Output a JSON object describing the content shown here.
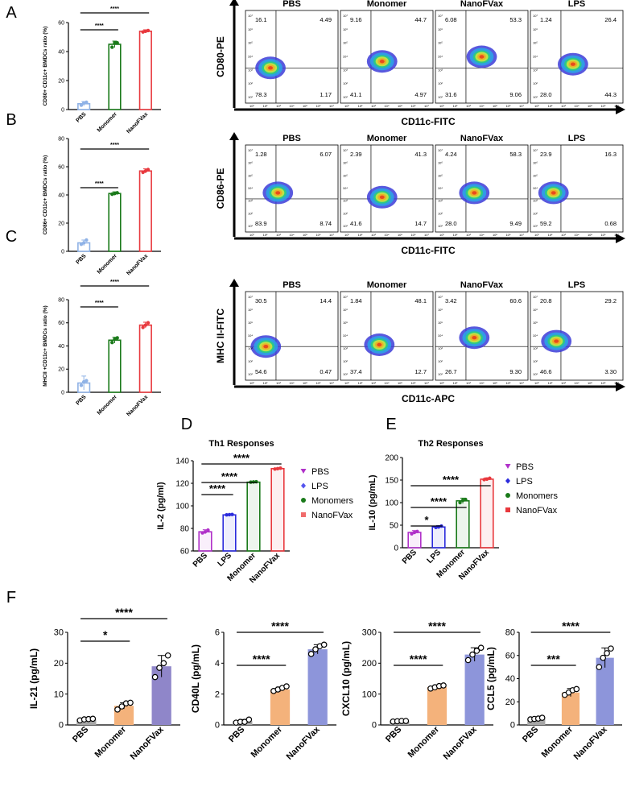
{
  "colors": {
    "pbs_light": "#8fb2e6",
    "monomer_green": "#1a7a1a",
    "nanofvax_red": "#e8383d",
    "purple": "#b031c9",
    "blue": "#2b2bdc",
    "gray_bar": "#a6a6a6",
    "orange_bar": "#f4b27b",
    "violet_bar": "#8f86c9",
    "periwinkle_bar": "#8d95da"
  },
  "panel_labels": [
    "A",
    "B",
    "C",
    "D",
    "E",
    "F"
  ],
  "flow_groups": [
    "PBS",
    "Monomer",
    "NanoFVax",
    "LPS"
  ],
  "flow_tick_labels": {
    "x": [
      "10⁰",
      "10²",
      "10³",
      "10⁴",
      "10⁵",
      "10⁶",
      "10⁷"
    ],
    "y": [
      "10⁷",
      "10⁶",
      "10⁵",
      "10⁴",
      "10³",
      "10²",
      "10¹"
    ]
  },
  "chart_data": [
    {
      "id": "A-bar",
      "type": "bar",
      "title": "",
      "categories": [
        "PBS",
        "Monomer",
        "NanoFVax"
      ],
      "values": [
        4,
        45,
        54
      ],
      "errors": [
        1.5,
        2.2,
        1.0
      ],
      "points": [
        [
          3,
          4.5,
          5
        ],
        [
          43,
          46,
          46
        ],
        [
          53.5,
          54,
          54.5
        ]
      ],
      "ylabel": "CD80+ CD11c+ BMDCs ratio (%)",
      "ylim": [
        0,
        60
      ],
      "yticks": [
        "0",
        "20",
        "40",
        "60"
      ],
      "significance": [
        "****",
        "****"
      ]
    },
    {
      "id": "A-flow",
      "type": "scatter",
      "xlabel": "CD11c-FITC",
      "ylabel": "CD80-PE",
      "groups": [
        "PBS",
        "Monomer",
        "NanoFVax",
        "LPS"
      ],
      "quadrants": [
        {
          "UL": "16.1",
          "UR": "4.49",
          "LL": "78.3",
          "LR": "1.17"
        },
        {
          "UL": "9.16",
          "UR": "44.7",
          "LL": "41.1",
          "LR": "4.97"
        },
        {
          "UL": "6.08",
          "UR": "53.3",
          "LL": "31.6",
          "LR": "9.06"
        },
        {
          "UL": "1.24",
          "UR": "26.4",
          "LL": "28.0",
          "LR": "44.3"
        }
      ]
    },
    {
      "id": "B-bar",
      "type": "bar",
      "categories": [
        "PBS",
        "Monomer",
        "NanoFVax"
      ],
      "values": [
        6,
        41,
        57
      ],
      "errors": [
        2.0,
        1.2,
        1.5
      ],
      "points": [
        [
          5,
          6,
          8
        ],
        [
          40.5,
          41,
          41.5
        ],
        [
          56,
          57,
          58
        ]
      ],
      "ylabel": "CD86+ CD11c+ BMDCs ratio (%)",
      "ylim": [
        0,
        80
      ],
      "yticks": [
        "0",
        "20",
        "40",
        "60",
        "80"
      ],
      "significance": [
        "****",
        "****"
      ]
    },
    {
      "id": "B-flow",
      "type": "scatter",
      "xlabel": "CD11c-FITC",
      "ylabel": "CD86-PE",
      "groups": [
        "PBS",
        "Monomer",
        "NanoFVax",
        "LPS"
      ],
      "quadrants": [
        {
          "UL": "1.28",
          "UR": "6.07",
          "LL": "83.9",
          "LR": "8.74"
        },
        {
          "UL": "2.39",
          "UR": "41.3",
          "LL": "41.6",
          "LR": "14.7"
        },
        {
          "UL": "4.24",
          "UR": "58.3",
          "LL": "28.0",
          "LR": "9.49"
        },
        {
          "UL": "23.9",
          "UR": "16.3",
          "LL": "59.2",
          "LR": "0.68"
        }
      ]
    },
    {
      "id": "C-bar",
      "type": "bar",
      "categories": [
        "PBS",
        "Monomer",
        "NanoFVax"
      ],
      "values": [
        8,
        45,
        58
      ],
      "errors": [
        6.0,
        2.5,
        2.5
      ],
      "points": [
        [
          6,
          9,
          10
        ],
        [
          43,
          46,
          47
        ],
        [
          56,
          58,
          60
        ]
      ],
      "ylabel": "MHCII +CD11c+ BMDCs ratio (%)",
      "ylim": [
        0,
        80
      ],
      "yticks": [
        "0",
        "20",
        "40",
        "60",
        "80"
      ],
      "significance": [
        "****",
        "****"
      ]
    },
    {
      "id": "C-flow",
      "type": "scatter",
      "xlabel": "CD11c-APC",
      "ylabel": "MHC II-FITC",
      "groups": [
        "PBS",
        "Monomer",
        "NanoFVax",
        "LPS"
      ],
      "quadrants": [
        {
          "UL": "30.5",
          "UR": "14.4",
          "LL": "54.6",
          "LR": "0.47"
        },
        {
          "UL": "1.84",
          "UR": "48.1",
          "LL": "37.4",
          "LR": "12.7"
        },
        {
          "UL": "3.42",
          "UR": "60.6",
          "LL": "26.7",
          "LR": "9.30"
        },
        {
          "UL": "20.8",
          "UR": "29.2",
          "LL": "46.6",
          "LR": "3.30"
        }
      ]
    },
    {
      "id": "D",
      "type": "bar",
      "title": "Th1 Responses",
      "categories": [
        "PBS",
        "LPS",
        "Monomer",
        "NanoFVax"
      ],
      "legend": [
        "PBS",
        "LPS",
        "Monomers",
        "NanoFVax"
      ],
      "values": [
        77,
        92,
        121,
        133
      ],
      "errors": [
        1.8,
        0.4,
        0.4,
        0.6
      ],
      "points": [
        [
          76,
          77,
          78.5
        ],
        [
          92,
          92.2,
          92.4
        ],
        [
          121,
          121.2,
          121.4
        ],
        [
          132.6,
          133,
          133.4
        ]
      ],
      "ylabel": "IL-2 (pg/ml)",
      "ylim": [
        60,
        140
      ],
      "yticks": [
        "60",
        "80",
        "100",
        "120",
        "140"
      ],
      "significance": [
        "****",
        "****",
        "****"
      ]
    },
    {
      "id": "E",
      "type": "bar",
      "title": "Th2 Responses",
      "categories": [
        "PBS",
        "LPS",
        "Monomer",
        "NanoFVax"
      ],
      "legend": [
        "PBS",
        "LPS",
        "Monomers",
        "NanoFVax"
      ],
      "values": [
        34,
        46,
        104,
        152
      ],
      "errors": [
        4,
        3,
        6,
        3
      ],
      "points": [
        [
          31,
          34,
          36
        ],
        [
          45,
          46,
          48
        ],
        [
          100,
          105,
          107
        ],
        [
          151,
          152,
          154
        ]
      ],
      "ylabel": "IL-10 (pg/mL)",
      "ylim": [
        0,
        200
      ],
      "yticks": [
        "0",
        "50",
        "100",
        "150",
        "200"
      ],
      "significance": [
        "*",
        "****",
        "****"
      ]
    },
    {
      "id": "F1",
      "type": "bar",
      "categories": [
        "PBS",
        "Monomer",
        "NanoFVax"
      ],
      "values": [
        1.8,
        6.2,
        19
      ],
      "errors": [
        0.3,
        1.0,
        3.5
      ],
      "points": [
        [
          1.5,
          1.8,
          1.9,
          2.0
        ],
        [
          5.0,
          6.0,
          7.0,
          7.2
        ],
        [
          15.5,
          18.5,
          20,
          22.5
        ]
      ],
      "ylabel": "IL-21 (pg/mL)",
      "ylim": [
        0,
        30
      ],
      "yticks": [
        "0",
        "10",
        "20",
        "30"
      ],
      "significance": [
        "*",
        "****"
      ]
    },
    {
      "id": "F2",
      "type": "bar",
      "categories": [
        "PBS",
        "Monomer",
        "NanoFVax"
      ],
      "values": [
        0.25,
        2.3,
        4.9
      ],
      "errors": [
        0.1,
        0.15,
        0.3
      ],
      "points": [
        [
          0.15,
          0.2,
          0.2,
          0.35
        ],
        [
          2.2,
          2.3,
          2.4,
          2.5
        ],
        [
          4.6,
          4.9,
          5.1,
          5.2
        ]
      ],
      "ylabel": "CD40L (pg/mL)",
      "ylim": [
        0,
        6
      ],
      "yticks": [
        "0",
        "2",
        "4",
        "6"
      ],
      "significance": [
        "****",
        "****"
      ]
    },
    {
      "id": "F3",
      "type": "bar",
      "categories": [
        "PBS",
        "Monomer",
        "NanoFVax"
      ],
      "values": [
        12,
        123,
        228
      ],
      "errors": [
        2,
        6,
        22
      ],
      "points": [
        [
          11,
          12,
          13,
          13
        ],
        [
          118,
          122,
          126,
          128
        ],
        [
          210,
          228,
          240,
          250
        ]
      ],
      "ylabel": "CXCL10 (pg/mL)",
      "ylim": [
        0,
        300
      ],
      "yticks": [
        "0",
        "100",
        "200",
        "300"
      ],
      "significance": [
        "****",
        "****"
      ]
    },
    {
      "id": "F4",
      "type": "bar",
      "categories": [
        "PBS",
        "Monomer",
        "NanoFVax"
      ],
      "values": [
        5.5,
        28,
        58
      ],
      "errors": [
        1.0,
        3.5,
        8.5
      ],
      "points": [
        [
          4.8,
          5.2,
          5.5,
          6.2
        ],
        [
          26,
          28,
          30,
          31
        ],
        [
          50,
          58,
          62,
          66
        ]
      ],
      "ylabel": "CCL5 (pg/mL)",
      "ylim": [
        0,
        80
      ],
      "yticks": [
        "0",
        "20",
        "40",
        "60",
        "80"
      ],
      "significance": [
        "***",
        "****"
      ]
    }
  ]
}
